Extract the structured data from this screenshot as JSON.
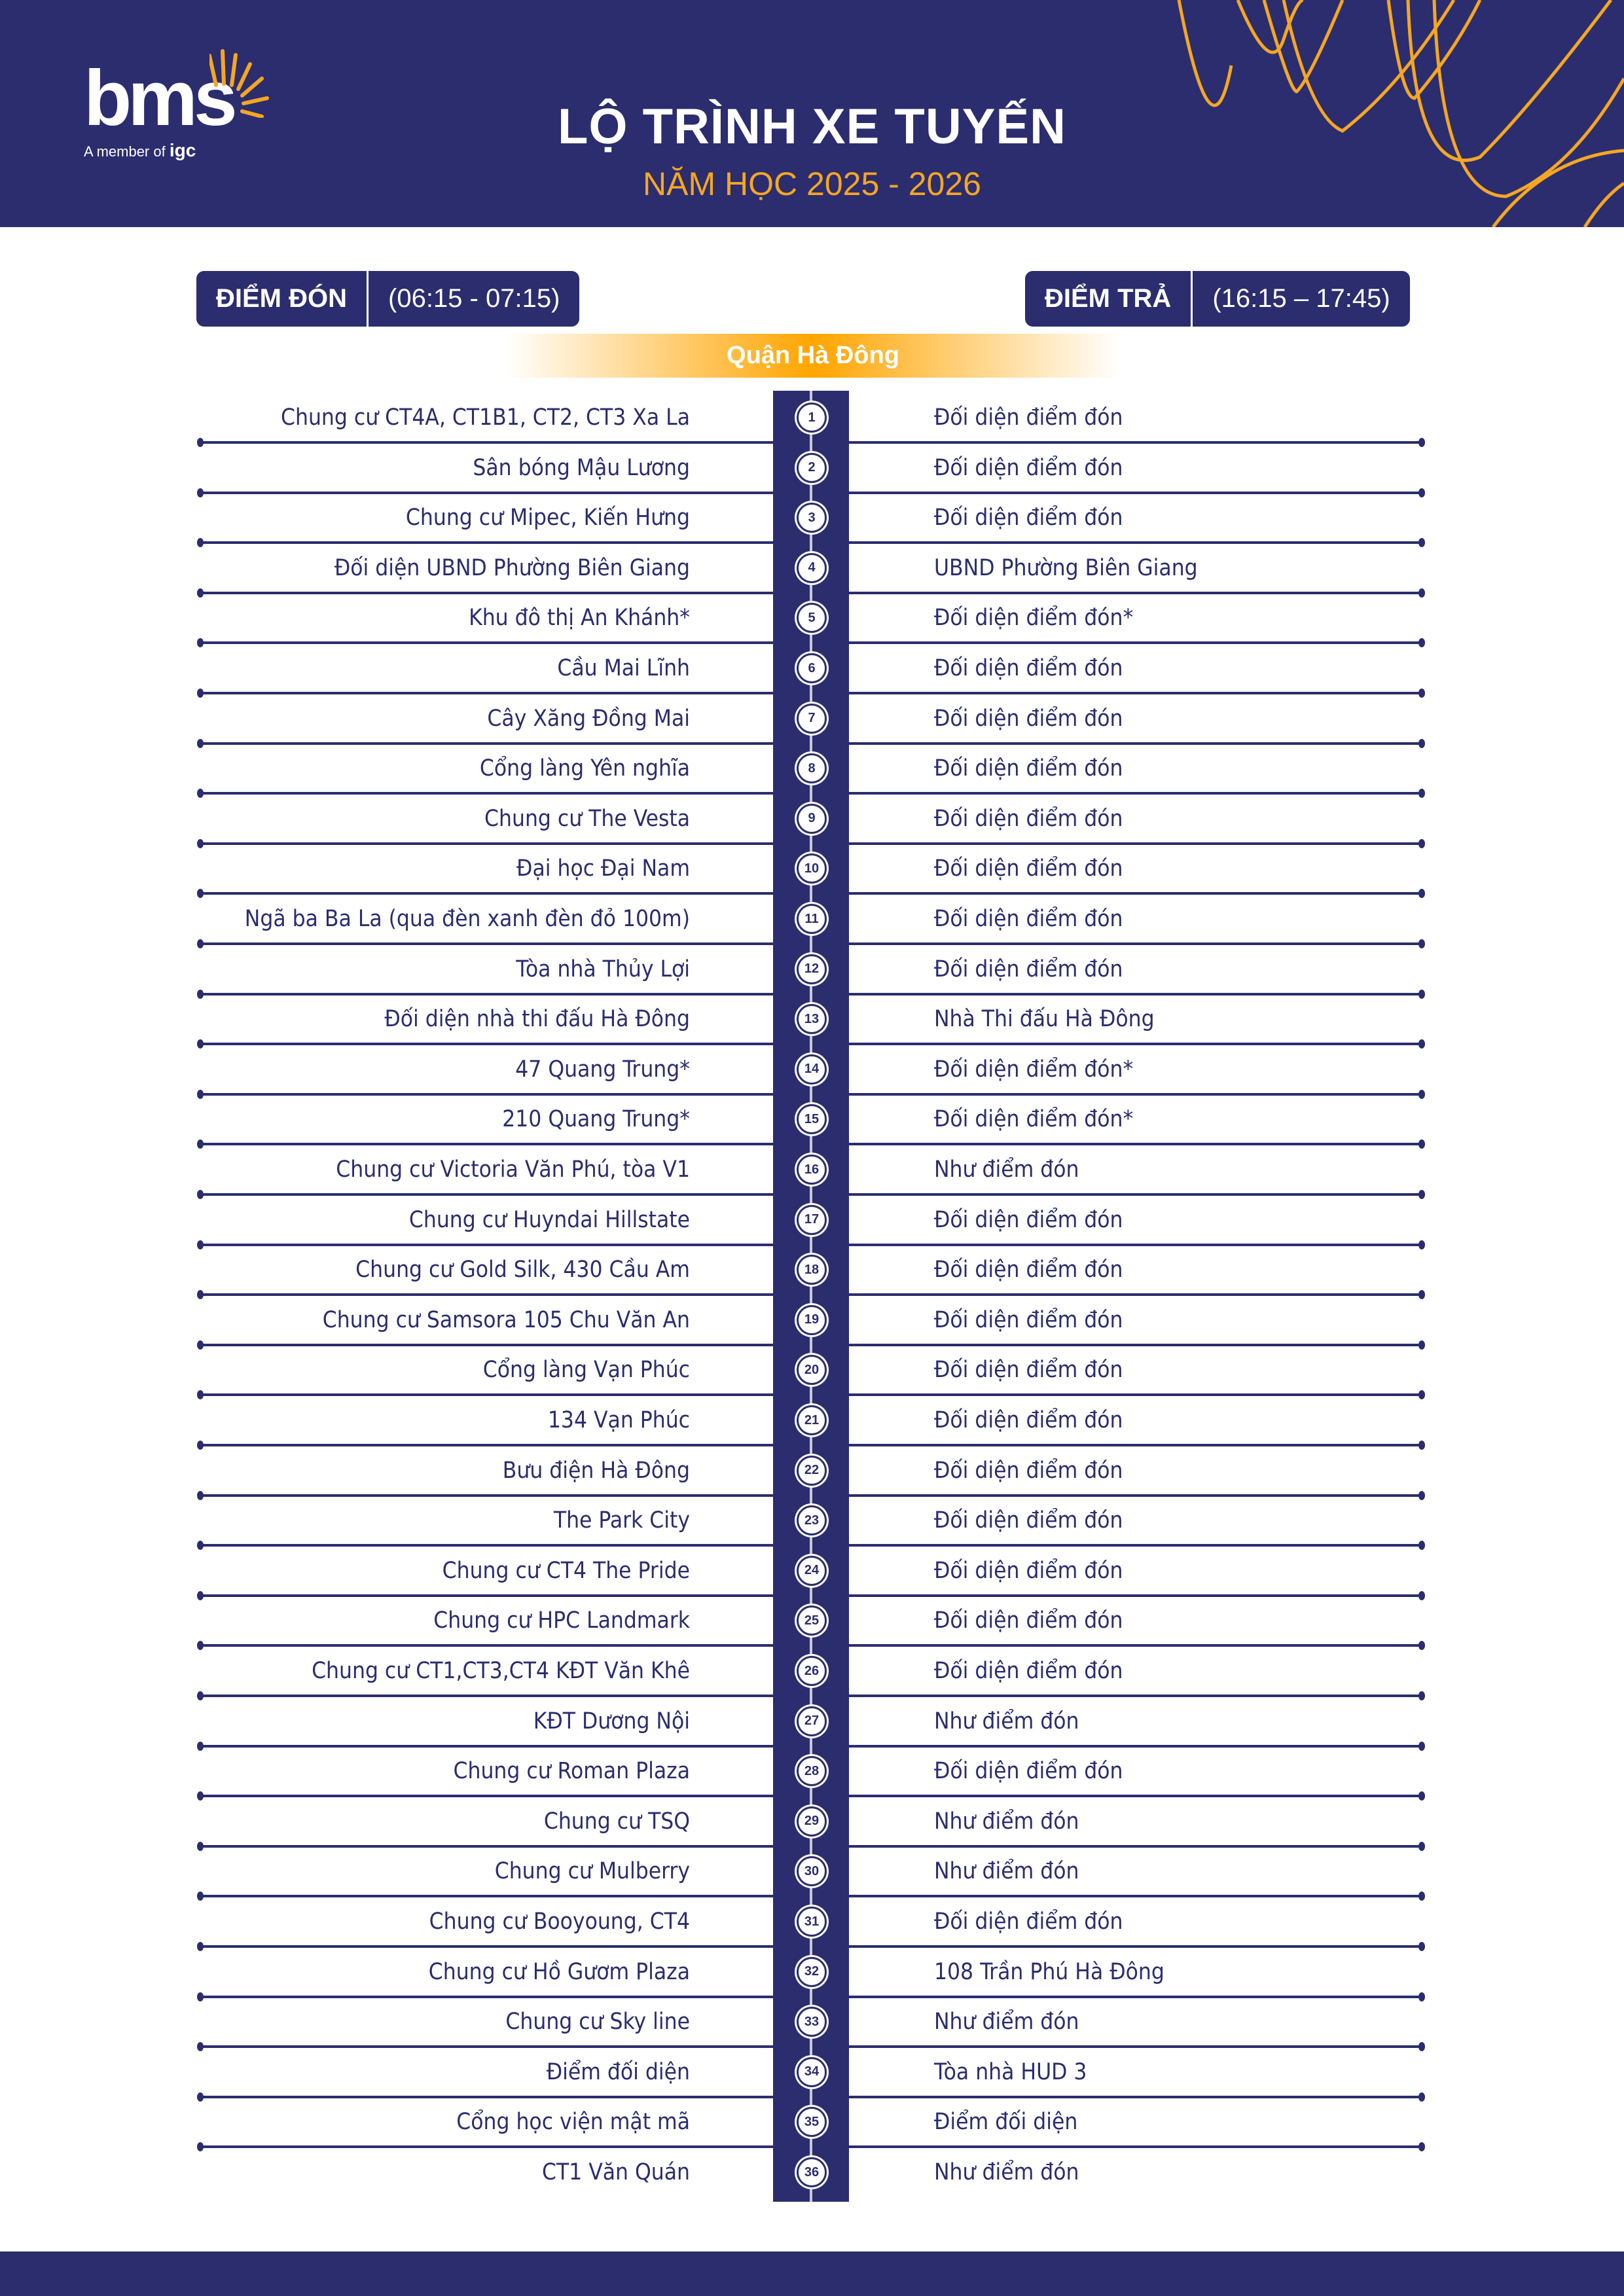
{
  "logo": {
    "brand": "bms",
    "member_text": "A member of",
    "member_brand": "igc"
  },
  "header": {
    "title": "LỘ TRÌNH XE TUYẾN",
    "subtitle": "NĂM HỌC 2025 - 2026"
  },
  "pickup": {
    "label": "ĐIỂM ĐÓN",
    "time": "(06:15 - 07:15)"
  },
  "dropoff": {
    "label": "ĐIỂM TRẢ",
    "time": "(16:15 – 17:45)"
  },
  "district": "Quận Hà Đông",
  "colors": {
    "navy": "#2b2d6e",
    "orange": "#f5a623"
  },
  "stops": [
    {
      "no": "1",
      "pickup": "Chung cư CT4A, CT1B1, CT2, CT3 Xa La",
      "dropoff": "Đối diện điểm đón"
    },
    {
      "no": "2",
      "pickup": "Sân bóng Mậu Lương",
      "dropoff": "Đối diện điểm đón"
    },
    {
      "no": "3",
      "pickup": "Chung cư Mipec, Kiến Hưng",
      "dropoff": "Đối diện điểm đón"
    },
    {
      "no": "4",
      "pickup": "Đối diện UBND Phường Biên Giang",
      "dropoff": "UBND Phường Biên Giang"
    },
    {
      "no": "5",
      "pickup": "Khu đô thị An Khánh*",
      "dropoff": "Đối diện điểm đón*"
    },
    {
      "no": "6",
      "pickup": "Cầu Mai Lĩnh",
      "dropoff": "Đối diện điểm đón"
    },
    {
      "no": "7",
      "pickup": "Cây Xăng Đồng Mai",
      "dropoff": "Đối diện điểm đón"
    },
    {
      "no": "8",
      "pickup": "Cổng làng Yên nghĩa",
      "dropoff": "Đối diện điểm đón"
    },
    {
      "no": "9",
      "pickup": "Chung cư The Vesta",
      "dropoff": "Đối diện điểm đón"
    },
    {
      "no": "10",
      "pickup": "Đại học Đại Nam",
      "dropoff": "Đối diện điểm đón"
    },
    {
      "no": "11",
      "pickup": "Ngã ba Ba La (qua đèn xanh đèn đỏ 100m)",
      "dropoff": "Đối diện điểm đón"
    },
    {
      "no": "12",
      "pickup": "Tòa nhà Thủy Lợi",
      "dropoff": "Đối diện điểm đón"
    },
    {
      "no": "13",
      "pickup": "Đối diện nhà thi đấu Hà Đông",
      "dropoff": "Nhà Thi đấu Hà Đông"
    },
    {
      "no": "14",
      "pickup": "47 Quang Trung*",
      "dropoff": "Đối diện điểm đón*"
    },
    {
      "no": "15",
      "pickup": "210 Quang Trung*",
      "dropoff": "Đối diện điểm đón*"
    },
    {
      "no": "16",
      "pickup": "Chung cư Victoria Văn Phú, tòa V1",
      "dropoff": "Như điểm đón"
    },
    {
      "no": "17",
      "pickup": "Chung cư Huyndai Hillstate",
      "dropoff": "Đối diện điểm đón"
    },
    {
      "no": "18",
      "pickup": "Chung cư Gold Silk, 430 Cầu Am",
      "dropoff": "Đối diện điểm đón"
    },
    {
      "no": "19",
      "pickup": "Chung cư Samsora 105 Chu Văn An",
      "dropoff": "Đối diện điểm đón"
    },
    {
      "no": "20",
      "pickup": "Cổng làng Vạn Phúc",
      "dropoff": "Đối diện điểm đón"
    },
    {
      "no": "21",
      "pickup": "134 Vạn Phúc",
      "dropoff": "Đối diện điểm đón"
    },
    {
      "no": "22",
      "pickup": "Bưu điện Hà Đông",
      "dropoff": "Đối diện điểm đón"
    },
    {
      "no": "23",
      "pickup": "The Park City",
      "dropoff": "Đối diện điểm đón"
    },
    {
      "no": "24",
      "pickup": "Chung cư CT4 The Pride",
      "dropoff": "Đối diện điểm đón"
    },
    {
      "no": "25",
      "pickup": "Chung cư HPC Landmark",
      "dropoff": "Đối diện điểm đón"
    },
    {
      "no": "26",
      "pickup": "Chung cư CT1,CT3,CT4 KĐT Văn Khê",
      "dropoff": "Đối diện điểm đón"
    },
    {
      "no": "27",
      "pickup": "KĐT Dương Nội",
      "dropoff": "Như điểm đón"
    },
    {
      "no": "28",
      "pickup": "Chung cư Roman Plaza",
      "dropoff": "Đối diện điểm đón"
    },
    {
      "no": "29",
      "pickup": "Chung cư TSQ",
      "dropoff": "Như điểm đón"
    },
    {
      "no": "30",
      "pickup": "Chung cư Mulberry",
      "dropoff": "Như điểm đón"
    },
    {
      "no": "31",
      "pickup": "Chung cư Booyoung, CT4",
      "dropoff": "Đối diện điểm đón"
    },
    {
      "no": "32",
      "pickup": "Chung cư Hồ Gươm Plaza",
      "dropoff": "108 Trần Phú Hà Đông"
    },
    {
      "no": "33",
      "pickup": "Chung cư Sky line",
      "dropoff": "Như điểm đón"
    },
    {
      "no": "34",
      "pickup": "Điểm đối diện",
      "dropoff": "Tòa nhà HUD 3"
    },
    {
      "no": "35",
      "pickup": "Cổng học viện mật mã",
      "dropoff": "Điểm đối diện"
    },
    {
      "no": "36",
      "pickup": "CT1 Văn Quán",
      "dropoff": "Như điểm đón"
    }
  ]
}
